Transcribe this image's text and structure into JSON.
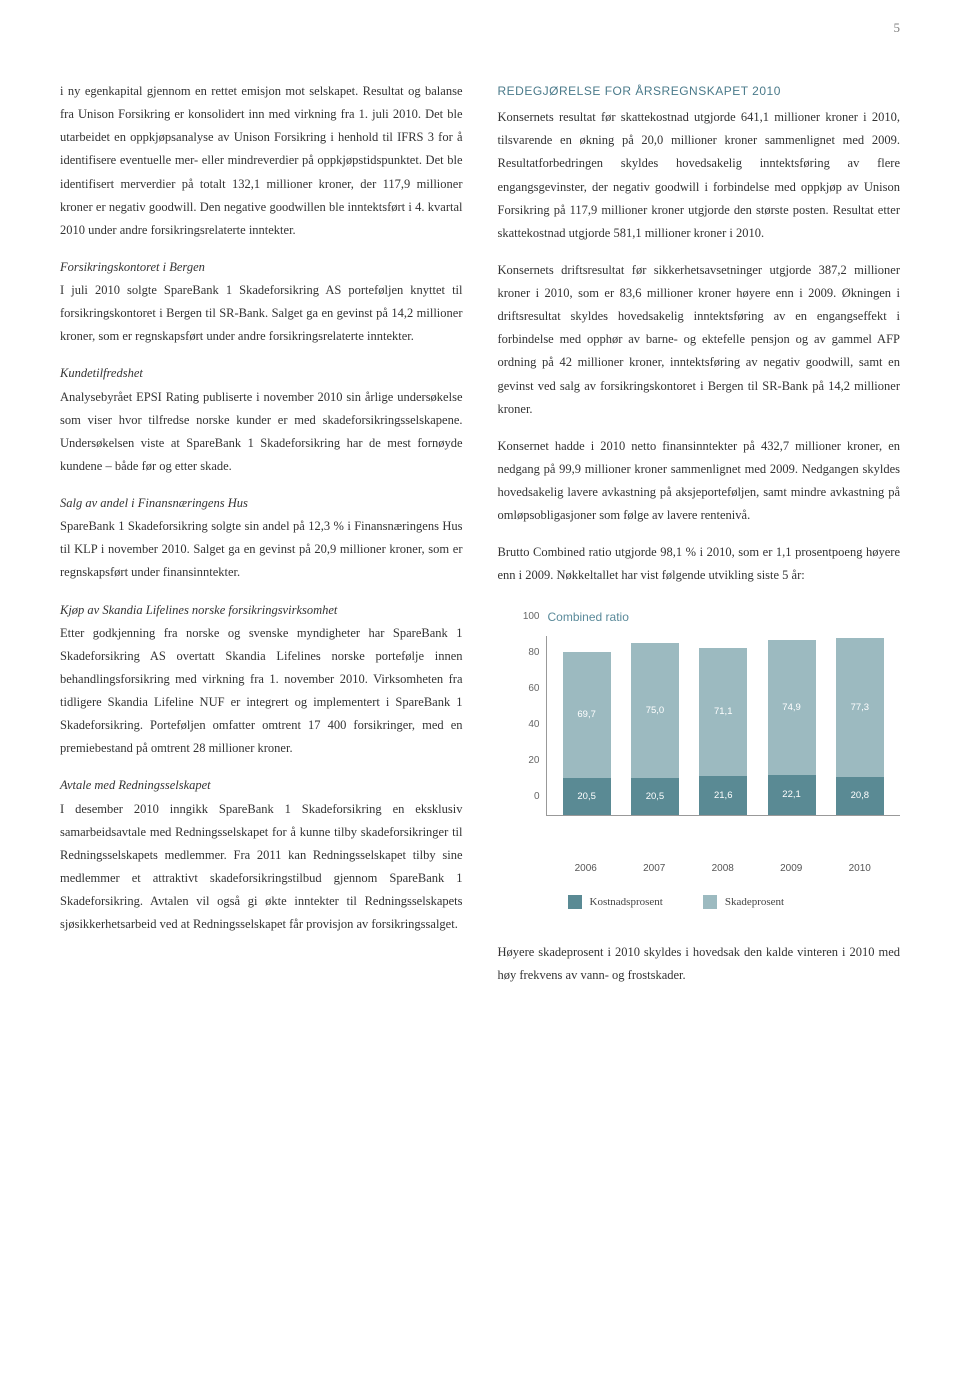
{
  "page_number": "5",
  "left_column": {
    "p1": "i ny egenkapital gjennom en rettet emisjon mot selskapet. Resultat og balanse fra Unison Forsikring er konsolidert inn med virkning fra 1. juli 2010. Det ble utarbeidet en oppkjøpsanalyse av Unison Forsikring i henhold til IFRS 3 for å identifisere eventuelle mer- eller mindreverdier på oppkjøpstidspunktet. Det ble identifisert merverdier på totalt 132,1 millioner kroner, der 117,9 millioner kroner er negativ goodwill. Den negative goodwillen ble inntektsført i 4. kvartal 2010 under andre forsikringsrelaterte inntekter.",
    "h2": "Forsikringskontoret i Bergen",
    "p2": "I juli 2010 solgte SpareBank 1 Skadeforsikring AS porteføljen knyttet til forsikringskontoret i Bergen til SR-Bank. Salget ga en gevinst på 14,2 millioner kroner, som er regnskapsført under andre forsikringsrelaterte inntekter.",
    "h3": "Kundetilfredshet",
    "p3": "Analysebyrået EPSI Rating publiserte i november 2010 sin årlige undersøkelse som viser hvor tilfredse norske kunder er med skadeforsikringsselskapene. Undersøkelsen viste at SpareBank 1 Skadeforsikring har de mest fornøyde kundene – både før og etter skade.",
    "h4": "Salg av andel i Finansnæringens Hus",
    "p4": "SpareBank 1 Skadeforsikring solgte sin andel på 12,3 % i Finansnæringens Hus til KLP i november 2010. Salget ga en gevinst på 20,9 millioner kroner, som er regnskapsført under finansinntekter.",
    "h5": "Kjøp av Skandia Lifelines norske forsikringsvirksomhet",
    "p5": "Etter godkjenning fra norske og svenske myndigheter har SpareBank 1 Skadeforsikring AS overtatt Skandia Lifelines norske portefølje innen behandlingsforsikring med virkning fra 1. november 2010. Virksomheten fra tidligere Skandia Lifeline NUF er integrert og implementert i SpareBank 1 Skadeforsikring. Porteføljen omfatter omtrent 17 400 forsikringer, med en premiebestand på omtrent 28 millioner kroner.",
    "h6": "Avtale med Redningsselskapet",
    "p6": "I desember 2010 inngikk SpareBank 1 Skadeforsikring en eksklusiv samarbeidsavtale med Redningsselskapet for å kunne tilby skadeforsikringer til Redningsselskapets medlemmer. Fra 2011 kan Redningsselskapet tilby sine medlemmer et attraktivt skadeforsikringstilbud gjennom SpareBank 1 Skadeforsikring. Avtalen vil også gi økte inntekter til Redningsselskapets sjøsikkerhetsarbeid ved at Redningsselskapet får provisjon av forsikringssalget."
  },
  "right_column": {
    "section_heading": "REDEGJØRELSE FOR ÅRSREGNSKAPET 2010",
    "p1": "Konsernets resultat før skattekostnad utgjorde 641,1 millioner kroner i 2010, tilsvarende en økning på 20,0 millioner kroner sammenlignet med 2009. Resultatforbedringen skyldes hovedsakelig inntektsføring av flere engangsgevinster, der negativ goodwill i forbindelse med oppkjøp av Unison Forsikring på 117,9 millioner kroner utgjorde den største posten. Resultat etter skattekostnad utgjorde 581,1 millioner kroner i 2010.",
    "p2": "Konsernets driftsresultat før sikkerhetsavsetninger utgjorde 387,2 millioner kroner i 2010, som er 83,6 millioner kroner høyere enn i 2009. Økningen i driftsresultat skyldes hovedsakelig inntektsføring av en engangseffekt i forbindelse med opphør av barne- og ektefelle pensjon og av gammel AFP ordning på 42 millioner kroner, inntektsføring av negativ goodwill, samt en gevinst ved salg av forsikringskontoret i Bergen til SR-Bank på 14,2 millioner kroner.",
    "p3": "Konsernet hadde i 2010 netto finansinntekter på 432,7 millioner kroner, en nedgang på 99,9 millioner kroner sammenlignet med 2009. Nedgangen skyldes hovedsakelig lavere avkastning på aksjeporteføljen, samt mindre avkastning på omløpsobligasjoner som følge av lavere rentenivå.",
    "p4": "Brutto Combined ratio utgjorde 98,1 % i 2010, som er 1,1 prosentpoeng høyere enn i 2009. Nøkkeltallet har vist følgende utvikling siste 5 år:",
    "p_after_chart": "Høyere skadeprosent i 2010 skyldes i hovedsak den kalde vinteren i 2010 med høy frekvens av vann- og frostskader."
  },
  "chart": {
    "title": "Combined ratio",
    "type": "stacked-bar",
    "ylim": [
      0,
      100
    ],
    "ytick_step": 20,
    "yticks": [
      "0",
      "20",
      "40",
      "60",
      "80",
      "100"
    ],
    "categories": [
      "2006",
      "2007",
      "2008",
      "2009",
      "2010"
    ],
    "series": [
      {
        "name": "Kostnadsprosent",
        "color": "#5a8a94",
        "values": [
          20.5,
          20.5,
          21.6,
          22.1,
          20.8
        ]
      },
      {
        "name": "Skadeprosent",
        "color": "#9cbac0",
        "values": [
          69.7,
          75.0,
          71.1,
          74.9,
          77.3
        ]
      }
    ],
    "value_labels_bottom": [
      "20,5",
      "20,5",
      "21,6",
      "22,1",
      "20,8"
    ],
    "value_labels_top": [
      "69,7",
      "75,0",
      "71,1",
      "74,9",
      "77,3"
    ],
    "legend": [
      "Kostnadsprosent",
      "Skadeprosent"
    ],
    "background_color": "#ffffff",
    "axis_color": "#999999",
    "tick_font_size": 10,
    "label_font_size": 10,
    "title_font_size": 12,
    "title_color": "#5a8a9a"
  }
}
